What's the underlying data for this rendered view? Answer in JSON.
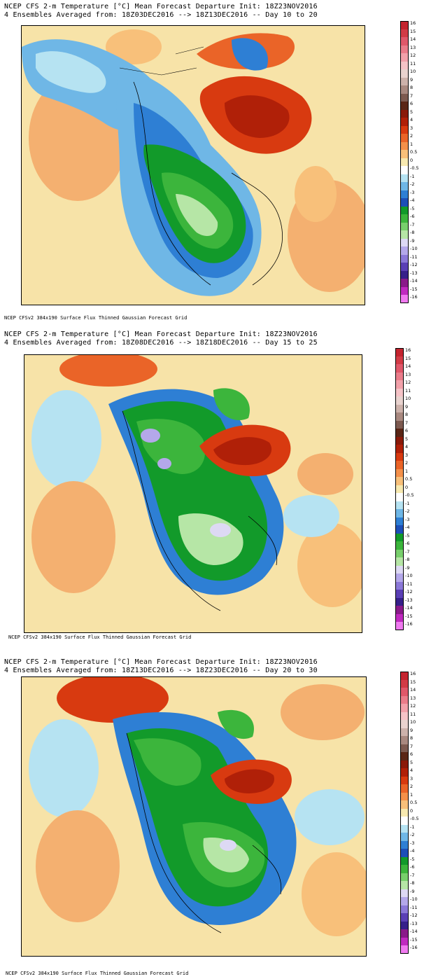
{
  "panels": [
    {
      "title_line1": "NCEP CFS 2-m Temperature [°C] Mean Forecast Departure Init: 18Z23NOV2016",
      "title_line2": "4 Ensembles Averaged from: 18Z03DEC2016 --> 18Z13DEC2016 -- Day 10 to 20",
      "footer": "NCEP CFSv2 384x190 Surface Flux Thinned Gaussian Forecast Grid"
    },
    {
      "title_line1": "NCEP CFS 2-m Temperature [°C] Mean Forecast Departure Init: 18Z23NOV2016",
      "title_line2": "4 Ensembles Averaged from: 18Z08DEC2016 --> 18Z18DEC2016 -- Day 15 to 25",
      "footer": "NCEP CFSv2 384x190 Surface Flux Thinned Gaussian Forecast Grid"
    },
    {
      "title_line1": "NCEP CFS 2-m Temperature [°C] Mean Forecast Departure Init: 18Z23NOV2016",
      "title_line2": "4 Ensembles Averaged from: 18Z13DEC2016 --> 18Z23DEC2016 -- Day 20 to 30",
      "footer": "NCEP CFSv2 384x190 Surface Flux Thinned Gaussian Forecast Grid"
    }
  ],
  "colorbar": {
    "levels": [
      {
        "label": "16",
        "color": "#c4242f"
      },
      {
        "label": "15",
        "color": "#d23b46"
      },
      {
        "label": "14",
        "color": "#e0586a"
      },
      {
        "label": "13",
        "color": "#ea7c8a"
      },
      {
        "label": "12",
        "color": "#f2a1aa"
      },
      {
        "label": "11",
        "color": "#f6c3c7"
      },
      {
        "label": "10",
        "color": "#e9d3cf"
      },
      {
        "label": "9",
        "color": "#cdb2ab"
      },
      {
        "label": "8",
        "color": "#a98980"
      },
      {
        "label": "7",
        "color": "#7d5a50"
      },
      {
        "label": "6",
        "color": "#5a2616"
      },
      {
        "label": "5",
        "color": "#8a1a0a"
      },
      {
        "label": "4",
        "color": "#b02008"
      },
      {
        "label": "3",
        "color": "#d83a10"
      },
      {
        "label": "2",
        "color": "#ea6428"
      },
      {
        "label": "1",
        "color": "#f4904a"
      },
      {
        "label": "0.5",
        "color": "#f8c07a"
      },
      {
        "label": "0",
        "color": "#f7e9b0"
      },
      {
        "label": "-0.5",
        "color": "#ffffff"
      },
      {
        "label": "-1",
        "color": "#b6e3f2"
      },
      {
        "label": "-2",
        "color": "#6fb7e6"
      },
      {
        "label": "-3",
        "color": "#2e7fd4"
      },
      {
        "label": "-4",
        "color": "#1d4fb8"
      },
      {
        "label": "-5",
        "color": "#129a2a"
      },
      {
        "label": "-6",
        "color": "#3cb53c"
      },
      {
        "label": "-7",
        "color": "#78cf6c"
      },
      {
        "label": "-8",
        "color": "#b6e6a6"
      },
      {
        "label": "-9",
        "color": "#ddd9f4"
      },
      {
        "label": "-10",
        "color": "#b4a8ea"
      },
      {
        "label": "-11",
        "color": "#8b78d8"
      },
      {
        "label": "-12",
        "color": "#5a3fb5"
      },
      {
        "label": "-13",
        "color": "#36208a"
      },
      {
        "label": "-14",
        "color": "#8a1a8a"
      },
      {
        "label": "-15",
        "color": "#c02ac0"
      },
      {
        "label": "-16",
        "color": "#f07af0"
      }
    ]
  }
}
